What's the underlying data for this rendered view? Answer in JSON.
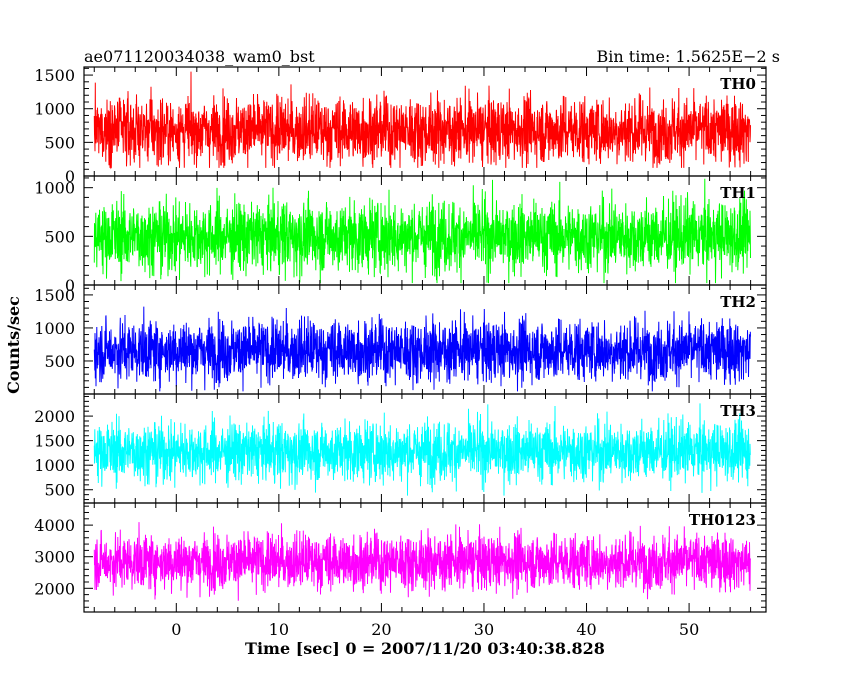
{
  "chart_data": {
    "type": "line",
    "title_left": "ae071120034038_wam0_bst",
    "title_right": "Bin time: 1.5625E−2 s",
    "xlabel": "Time [sec] 0 = 2007/11/20 03:40:38.828",
    "ylabel": "Counts/sec",
    "xlim": [
      -9,
      57.5
    ],
    "x_ticks": [
      0,
      10,
      20,
      30,
      40,
      50
    ],
    "x_tick_labels": [
      "0",
      "10",
      "20",
      "30",
      "40",
      "50"
    ],
    "data_x_range": [
      -8,
      56
    ],
    "grid": false,
    "panels": [
      {
        "label": "TH0",
        "color": "#ff0000",
        "ylim": [
          0,
          1620
        ],
        "y_ticks": [
          0,
          500,
          1000,
          1500
        ],
        "y_tick_labels": [
          "0",
          "500",
          "1000",
          "1500"
        ],
        "baseline": 680,
        "spread": 350,
        "max": 1620,
        "min": 120
      },
      {
        "label": "TH1",
        "color": "#00ff00",
        "ylim": [
          0,
          1120
        ],
        "y_ticks": [
          0,
          500,
          1000
        ],
        "y_tick_labels": [
          "0",
          "500",
          "1000"
        ],
        "baseline": 500,
        "spread": 260,
        "max": 1120,
        "min": 20
      },
      {
        "label": "TH2",
        "color": "#0000ff",
        "ylim": [
          0,
          1650
        ],
        "y_ticks": [
          500,
          1000,
          1500
        ],
        "y_tick_labels": [
          "500",
          "1000",
          "1500"
        ],
        "baseline": 660,
        "spread": 330,
        "max": 1600,
        "min": 40
      },
      {
        "label": "TH3",
        "color": "#00ffff",
        "ylim": [
          230,
          2450
        ],
        "y_ticks": [
          500,
          1000,
          1500,
          2000
        ],
        "y_tick_labels": [
          "500",
          "1000",
          "1500",
          "2000"
        ],
        "baseline": 1280,
        "spread": 430,
        "max": 2450,
        "min": 380
      },
      {
        "label": "TH0123",
        "color": "#ff00ff",
        "ylim": [
          1250,
          4700
        ],
        "y_ticks": [
          2000,
          3000,
          4000
        ],
        "y_tick_labels": [
          "2000",
          "3000",
          "4000"
        ],
        "baseline": 2850,
        "spread": 620,
        "max": 4700,
        "min": 1450
      }
    ]
  }
}
